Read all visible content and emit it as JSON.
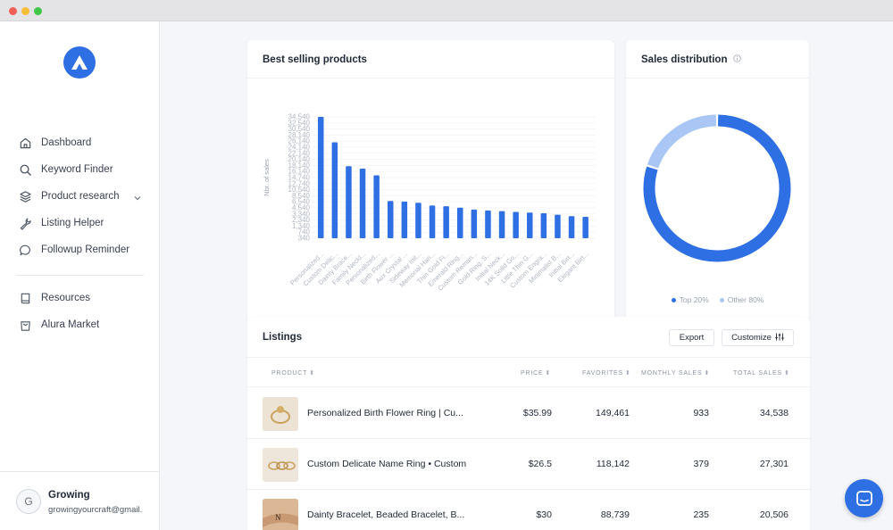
{
  "sidebar": {
    "nav": [
      {
        "label": "Dashboard",
        "icon": "home-icon"
      },
      {
        "label": "Keyword Finder",
        "icon": "search-icon"
      },
      {
        "label": "Product research",
        "icon": "layers-icon"
      },
      {
        "label": "Listing Helper",
        "icon": "wrench-icon"
      },
      {
        "label": "Followup Reminder",
        "icon": "chat-bubble-icon"
      }
    ],
    "nav2": [
      {
        "label": "Resources",
        "icon": "book-icon"
      },
      {
        "label": "Alura Market",
        "icon": "shopping-bag-icon"
      }
    ],
    "user": {
      "initial": "G",
      "name": "Growing",
      "email": "growingyourcraft@gmail."
    }
  },
  "best_selling": {
    "title": "Best selling products",
    "ylabel": "Nbr. of sales",
    "yticks": [
      "34,540",
      "32,540",
      "30,540",
      "28,140",
      "26,140",
      "24,140",
      "22,140",
      "20,140",
      "18,140",
      "16,140",
      "14,740",
      "12,740",
      "10,540",
      "8,540",
      "6,540",
      "4,540",
      "3,340",
      "2,340",
      "1,340",
      "740",
      "340"
    ],
    "categories": [
      "Personalized...",
      "Custom Delic...",
      "Dainty Brace...",
      "Family Neckl...",
      "Personalized...",
      "Birth Flower ...",
      "Aux Crystal ...",
      "Sideway Init...",
      "Memorial Han...",
      "Thin Gold Fi...",
      "Emerald Ring...",
      "Custom Reman...",
      "Gold Ring, S...",
      "Initial Neck...",
      "14K Solid Go...",
      "Little Thin G...",
      "Custom Engra...",
      "Minimalist B...",
      "Initial Birt...",
      "Elegant Birt..."
    ],
    "values": [
      34538,
      27301,
      20506,
      19800,
      17900,
      10600,
      10450,
      10100,
      9300,
      9100,
      8700,
      8150,
      7900,
      7700,
      7500,
      7300,
      7100,
      6700,
      6300,
      6100
    ],
    "bar_color": "#2f6fe4"
  },
  "chart_data": [
    {
      "type": "bar",
      "title": "Best selling products",
      "ylabel": "Nbr. of sales",
      "categories": [
        "Personalized...",
        "Custom Delic...",
        "Dainty Brace...",
        "Family Neckl...",
        "Personalized...",
        "Birth Flower ...",
        "Aux Crystal ...",
        "Sideway Init...",
        "Memorial Han...",
        "Thin Gold Fi...",
        "Emerald Ring...",
        "Custom Reman...",
        "Gold Ring, S...",
        "Initial Neck...",
        "14K Solid Go...",
        "Little Thin G...",
        "Custom Engra...",
        "Minimalist B...",
        "Initial Birt...",
        "Elegant Birt..."
      ],
      "values": [
        34538,
        27301,
        20506,
        19800,
        17900,
        10600,
        10450,
        10100,
        9300,
        9100,
        8700,
        8150,
        7900,
        7700,
        7500,
        7300,
        7100,
        6700,
        6300,
        6100
      ],
      "ylim": [
        0,
        34540
      ],
      "grid": true
    },
    {
      "type": "pie",
      "title": "Sales distribution",
      "categories": [
        "Top 20%",
        "Other 80%"
      ],
      "values": [
        80,
        20
      ],
      "legend": "bottom"
    }
  ],
  "distribution": {
    "title": "Sales distribution",
    "info_icon": "info-icon",
    "slices": [
      {
        "label": "Top 20%",
        "value": 80,
        "color": "#2f6fe4"
      },
      {
        "label": "Other 80%",
        "value": 20,
        "color": "#a9c6f5"
      }
    ]
  },
  "listings": {
    "title": "Listings",
    "export_label": "Export",
    "customize_label": "Customize",
    "columns": {
      "product": "Product",
      "price": "Price",
      "favorites": "Favorites",
      "monthly": "Monthly Sales",
      "total": "Total Sales"
    },
    "sort_glyph": "⬍",
    "rows": [
      {
        "product": "Personalized Birth Flower Ring | Cu...",
        "price": "$35.99",
        "favorites": "149,461",
        "monthly": "933",
        "total": "34,538"
      },
      {
        "product": "Custom Delicate Name Ring • Custom",
        "price": "$26.5",
        "favorites": "118,142",
        "monthly": "379",
        "total": "27,301"
      },
      {
        "product": "Dainty Bracelet, Beaded Bracelet, B...",
        "price": "$30",
        "favorites": "88,739",
        "monthly": "235",
        "total": "20,506"
      }
    ]
  }
}
